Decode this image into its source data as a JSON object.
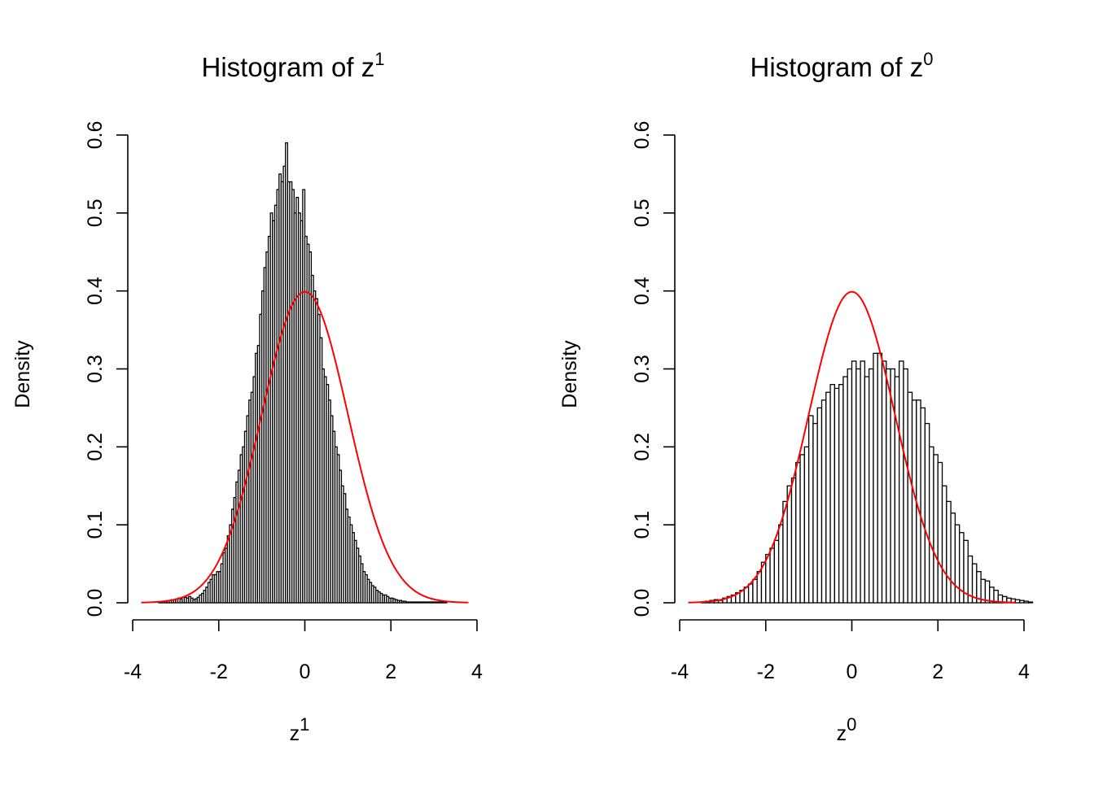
{
  "chart_data": [
    {
      "type": "bar",
      "variant": "histogram",
      "title": "Histogram of z",
      "title_superscript": "1",
      "xlabel": "z",
      "xlabel_superscript": "1",
      "ylabel": "Density",
      "xlim": [
        -4,
        4
      ],
      "ylim": [
        0,
        0.6
      ],
      "xticks": [
        -4,
        -2,
        0,
        2,
        4
      ],
      "yticks": [
        0.0,
        0.1,
        0.2,
        0.3,
        0.4,
        0.5,
        0.6
      ],
      "xtick_labels": [
        "-4",
        "-2",
        "0",
        "2",
        "4"
      ],
      "ytick_labels": [
        "0.0",
        "0.1",
        "0.2",
        "0.3",
        "0.4",
        "0.5",
        "0.6"
      ],
      "bin_start": -3.4,
      "bin_width": 0.05,
      "densities": [
        0.001,
        0.001,
        0.002,
        0.002,
        0.003,
        0.003,
        0.004,
        0.004,
        0.005,
        0.006,
        0.005,
        0.007,
        0.007,
        0.006,
        0.008,
        0.006,
        0.004,
        0.005,
        0.007,
        0.01,
        0.012,
        0.016,
        0.02,
        0.026,
        0.03,
        0.036,
        0.036,
        0.04,
        0.04,
        0.05,
        0.064,
        0.07,
        0.086,
        0.1,
        0.12,
        0.135,
        0.155,
        0.17,
        0.19,
        0.2,
        0.22,
        0.24,
        0.26,
        0.27,
        0.29,
        0.32,
        0.33,
        0.37,
        0.4,
        0.43,
        0.45,
        0.47,
        0.5,
        0.49,
        0.51,
        0.53,
        0.55,
        0.54,
        0.56,
        0.59,
        0.54,
        0.54,
        0.53,
        0.5,
        0.52,
        0.5,
        0.49,
        0.53,
        0.47,
        0.46,
        0.45,
        0.42,
        0.4,
        0.39,
        0.37,
        0.34,
        0.3,
        0.29,
        0.28,
        0.26,
        0.24,
        0.22,
        0.2,
        0.19,
        0.17,
        0.15,
        0.14,
        0.12,
        0.11,
        0.1,
        0.09,
        0.08,
        0.07,
        0.06,
        0.05,
        0.04,
        0.036,
        0.03,
        0.026,
        0.022,
        0.02,
        0.016,
        0.014,
        0.012,
        0.01,
        0.01,
        0.008,
        0.006,
        0.006,
        0.005,
        0.004,
        0.003,
        0.003,
        0.002,
        0.002,
        0.001,
        0.001,
        0.001,
        0.001,
        0.001,
        0.001,
        0.001,
        0.001,
        0.001,
        0.001,
        0.001,
        0.001,
        0.001,
        0.001,
        0.001,
        0.001,
        0.001,
        0.001,
        0.001
      ],
      "overlay": {
        "type": "line",
        "function": "standard normal density",
        "mean": 0,
        "sd": 1,
        "x_range": [
          -3.8,
          3.8
        ],
        "color": "#ff0000"
      },
      "grid": false
    },
    {
      "type": "bar",
      "variant": "histogram",
      "title": "Histogram of z",
      "title_superscript": "0",
      "xlabel": "z",
      "xlabel_superscript": "0",
      "ylabel": "Density",
      "xlim": [
        -4,
        4
      ],
      "ylim": [
        0,
        0.6
      ],
      "xticks": [
        -4,
        -2,
        0,
        2,
        4
      ],
      "yticks": [
        0.0,
        0.1,
        0.2,
        0.3,
        0.4,
        0.5,
        0.6
      ],
      "xtick_labels": [
        "-4",
        "-2",
        "0",
        "2",
        "4"
      ],
      "ytick_labels": [
        "0.0",
        "0.1",
        "0.2",
        "0.3",
        "0.4",
        "0.5",
        "0.6"
      ],
      "bin_start": -3.5,
      "bin_width": 0.1,
      "densities": [
        0.001,
        0.002,
        0.003,
        0.004,
        0.003,
        0.006,
        0.008,
        0.01,
        0.013,
        0.016,
        0.02,
        0.024,
        0.03,
        0.04,
        0.052,
        0.062,
        0.07,
        0.08,
        0.1,
        0.13,
        0.15,
        0.16,
        0.18,
        0.19,
        0.2,
        0.24,
        0.23,
        0.25,
        0.26,
        0.27,
        0.28,
        0.275,
        0.28,
        0.29,
        0.3,
        0.31,
        0.3,
        0.31,
        0.29,
        0.3,
        0.32,
        0.32,
        0.31,
        0.3,
        0.3,
        0.29,
        0.31,
        0.3,
        0.27,
        0.26,
        0.26,
        0.25,
        0.23,
        0.2,
        0.19,
        0.18,
        0.15,
        0.13,
        0.115,
        0.1,
        0.09,
        0.08,
        0.06,
        0.05,
        0.04,
        0.03,
        0.028,
        0.02,
        0.016,
        0.01,
        0.008,
        0.006,
        0.005,
        0.004,
        0.003,
        0.002,
        0.001
      ],
      "overlay": {
        "type": "line",
        "function": "standard normal density",
        "mean": 0,
        "sd": 1,
        "x_range": [
          -3.8,
          3.8
        ],
        "color": "#ff0000"
      },
      "grid": false
    }
  ]
}
